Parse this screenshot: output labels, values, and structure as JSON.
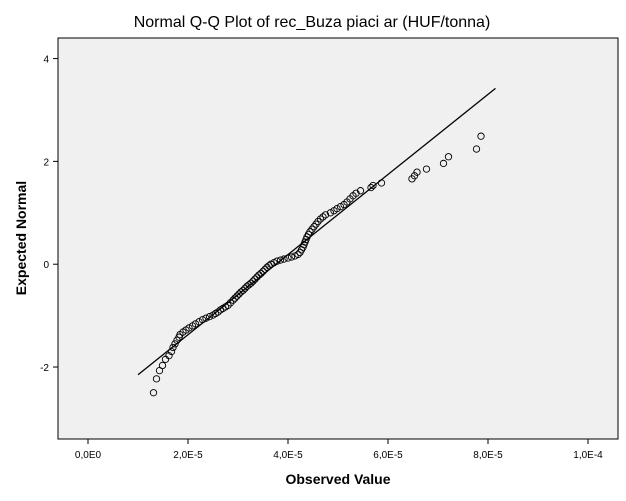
{
  "chart_data": {
    "type": "scatter",
    "title": "Normal Q-Q Plot of rec_Buza piaci ar (HUF/tonna)",
    "xlabel": "Observed Value",
    "ylabel": "Expected Normal",
    "xlim": [
      -6e-06,
      0.000106
    ],
    "ylim": [
      -3.4,
      4.4
    ],
    "x_ticks": [
      0,
      2e-05,
      4e-05,
      6e-05,
      8e-05,
      0.0001
    ],
    "x_tick_labels": [
      "0,0E0",
      "2,0E-5",
      "4,0E-5",
      "6,0E-5",
      "8,0E-5",
      "1,0E-4"
    ],
    "y_ticks": [
      -2,
      0,
      2,
      4
    ],
    "y_tick_labels": [
      "-2",
      "0",
      "2",
      "4"
    ],
    "grid": false,
    "background": "#f0f0f0",
    "marker": "open-circle",
    "reference_line": {
      "x": [
        1e-05,
        8.15e-05
      ],
      "y": [
        -2.15,
        3.42
      ]
    },
    "series": [
      {
        "points": [
          [
            1.31e-05,
            -2.5
          ],
          [
            1.37e-05,
            -2.23
          ],
          [
            1.43e-05,
            -2.07
          ],
          [
            1.49e-05,
            -1.97
          ],
          [
            1.55e-05,
            -1.85
          ],
          [
            1.62e-05,
            -1.78
          ],
          [
            1.67e-05,
            -1.7
          ],
          [
            1.7e-05,
            -1.62
          ],
          [
            1.74e-05,
            -1.55
          ],
          [
            1.78e-05,
            -1.48
          ],
          [
            1.82e-05,
            -1.42
          ],
          [
            1.84e-05,
            -1.37
          ],
          [
            1.9e-05,
            -1.32
          ],
          [
            1.96e-05,
            -1.28
          ],
          [
            2.02e-05,
            -1.24
          ],
          [
            2.09e-05,
            -1.2
          ],
          [
            2.15e-05,
            -1.16
          ],
          [
            2.22e-05,
            -1.12
          ],
          [
            2.29e-05,
            -1.08
          ],
          [
            2.36e-05,
            -1.05
          ],
          [
            2.43e-05,
            -1.02
          ],
          [
            2.5e-05,
            -0.99
          ],
          [
            2.55e-05,
            -0.96
          ],
          [
            2.6e-05,
            -0.93
          ],
          [
            2.65e-05,
            -0.89
          ],
          [
            2.7e-05,
            -0.86
          ],
          [
            2.75e-05,
            -0.83
          ],
          [
            2.8e-05,
            -0.8
          ],
          [
            2.85e-05,
            -0.75
          ],
          [
            2.9e-05,
            -0.7
          ],
          [
            2.94e-05,
            -0.66
          ],
          [
            2.98e-05,
            -0.62
          ],
          [
            3.02e-05,
            -0.58
          ],
          [
            3.06e-05,
            -0.54
          ],
          [
            3.1e-05,
            -0.51
          ],
          [
            3.14e-05,
            -0.47
          ],
          [
            3.18e-05,
            -0.43
          ],
          [
            3.22e-05,
            -0.4
          ],
          [
            3.26e-05,
            -0.37
          ],
          [
            3.3e-05,
            -0.33
          ],
          [
            3.34e-05,
            -0.29
          ],
          [
            3.38e-05,
            -0.25
          ],
          [
            3.42e-05,
            -0.21
          ],
          [
            3.46e-05,
            -0.18
          ],
          [
            3.5e-05,
            -0.14
          ],
          [
            3.54e-05,
            -0.1
          ],
          [
            3.58e-05,
            -0.06
          ],
          [
            3.62e-05,
            -0.03
          ],
          [
            3.66e-05,
            0.0
          ],
          [
            3.72e-05,
            0.03
          ],
          [
            3.78e-05,
            0.06
          ],
          [
            3.85e-05,
            0.08
          ],
          [
            3.92e-05,
            0.1
          ],
          [
            4e-05,
            0.12
          ],
          [
            4.07e-05,
            0.14
          ],
          [
            4.14e-05,
            0.16
          ],
          [
            4.2e-05,
            0.19
          ],
          [
            4.24e-05,
            0.23
          ],
          [
            4.27e-05,
            0.28
          ],
          [
            4.3e-05,
            0.33
          ],
          [
            4.32e-05,
            0.38
          ],
          [
            4.34e-05,
            0.43
          ],
          [
            4.36e-05,
            0.48
          ],
          [
            4.38e-05,
            0.53
          ],
          [
            4.41e-05,
            0.58
          ],
          [
            4.44e-05,
            0.63
          ],
          [
            4.48e-05,
            0.68
          ],
          [
            4.52e-05,
            0.73
          ],
          [
            4.56e-05,
            0.78
          ],
          [
            4.6e-05,
            0.83
          ],
          [
            4.65e-05,
            0.88
          ],
          [
            4.7e-05,
            0.92
          ],
          [
            4.75e-05,
            0.96
          ],
          [
            4.85e-05,
            1.0
          ],
          [
            4.92e-05,
            1.04
          ],
          [
            4.98e-05,
            1.08
          ],
          [
            5.05e-05,
            1.12
          ],
          [
            5.12e-05,
            1.16
          ],
          [
            5.18e-05,
            1.21
          ],
          [
            5.24e-05,
            1.27
          ],
          [
            5.3e-05,
            1.33
          ],
          [
            5.36e-05,
            1.38
          ],
          [
            5.45e-05,
            1.43
          ],
          [
            5.66e-05,
            1.49
          ],
          [
            5.7e-05,
            1.53
          ],
          [
            5.87e-05,
            1.58
          ],
          [
            6.48e-05,
            1.66
          ],
          [
            6.53e-05,
            1.72
          ],
          [
            6.58e-05,
            1.79
          ],
          [
            6.77e-05,
            1.85
          ],
          [
            7.11e-05,
            1.96
          ],
          [
            7.21e-05,
            2.09
          ],
          [
            7.77e-05,
            2.24
          ],
          [
            7.86e-05,
            2.49
          ]
        ]
      }
    ]
  }
}
